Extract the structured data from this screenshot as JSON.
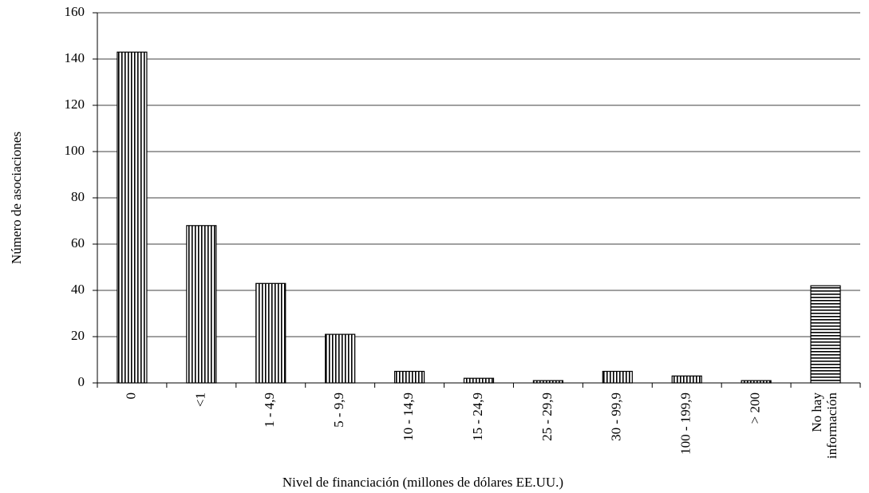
{
  "chart_data": {
    "type": "bar",
    "x_label": "Nivel de financiación (millones de dólares EE.UU.)",
    "y_label": "Número de asociaciones",
    "categories": [
      "0",
      "<1",
      "1 - 4,9",
      "5 - 9,9",
      "10 - 14,9",
      "15 - 24,9",
      "25 - 29,9",
      "30 - 99,9",
      "100 - 199,9",
      "> 200",
      "No hay\ninformación"
    ],
    "values": [
      143,
      68,
      43,
      21,
      5,
      2,
      1,
      5,
      3,
      1,
      42
    ],
    "bar_patterns": [
      "vertical",
      "vertical",
      "vertical",
      "vertical",
      "vertical",
      "vertical",
      "vertical",
      "vertical",
      "vertical",
      "vertical",
      "horizontal"
    ],
    "color": "#000000",
    "ylim": [
      0,
      160
    ],
    "yticks": [
      0,
      20,
      40,
      60,
      80,
      100,
      120,
      140,
      160
    ],
    "grid": true
  }
}
